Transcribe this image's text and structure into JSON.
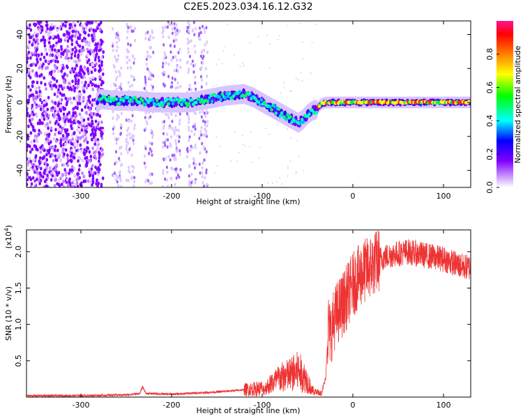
{
  "title": "C2E5.2023.034.16.12.G32",
  "colorbar": {
    "label": "Normalized spectral amplitude",
    "range": [
      0,
      1
    ],
    "ticks": [
      "0.0",
      "0.2",
      "0.4",
      "0.6",
      "0.8"
    ],
    "tick_values": [
      0,
      0.2,
      0.4,
      0.6,
      0.8
    ],
    "colormap": [
      "#ff00ff",
      "#ff0000",
      "#ff8000",
      "#ffff00",
      "#00ff00",
      "#00ffff",
      "#0000ff",
      "#8000ff",
      "#c080ff",
      "#ffffff"
    ]
  },
  "chart_data": [
    {
      "type": "heatmap",
      "name": "spectrogram",
      "xlabel": "Height of straight line (km)",
      "ylabel": "Frequency (Hz)",
      "xlim": [
        -360,
        130
      ],
      "ylim": [
        -50,
        48
      ],
      "xticks": [
        -300,
        -200,
        -100,
        0,
        100
      ],
      "xtick_labels": [
        "-300",
        "-200",
        "-100",
        "0",
        "100"
      ],
      "yticks": [
        -40,
        -20,
        0,
        20,
        40
      ],
      "ytick_labels": [
        "-40",
        "-20",
        "0",
        "20",
        "40"
      ],
      "ridge": {
        "x": [
          -280,
          -260,
          -240,
          -220,
          -200,
          -180,
          -160,
          -140,
          -120,
          -110,
          -100,
          -90,
          -80,
          -70,
          -60,
          -55,
          -50,
          -45,
          -40,
          -35,
          -30,
          -20,
          0,
          50,
          100,
          130
        ],
        "y": [
          2,
          1,
          1,
          0,
          0,
          0,
          2,
          4,
          5,
          3,
          0,
          -3,
          -6,
          -9,
          -12,
          -10,
          -7,
          -5,
          -4,
          -1,
          0,
          0,
          0,
          0,
          0,
          0
        ]
      }
    },
    {
      "type": "line",
      "name": "snr",
      "xlabel": "Height of straight line (km)",
      "ylabel": "SNR (10 * v/v)",
      "scale_label": "(x10",
      "scale_exp": "4",
      "scale_close": ")",
      "color": "#ee3333",
      "xlim": [
        -360,
        130
      ],
      "ylim": [
        0,
        2.3
      ],
      "xticks": [
        -300,
        -200,
        -100,
        0,
        100
      ],
      "xtick_labels": [
        "-300",
        "-200",
        "-100",
        "0",
        "100"
      ],
      "yticks": [
        0.5,
        1.0,
        1.5,
        2.0
      ],
      "ytick_labels": [
        "0.5",
        "1.0",
        "1.5",
        "2.0"
      ],
      "series": [
        {
          "x": [
            -360,
            -300,
            -250,
            -235,
            -232,
            -228,
            -200,
            -150,
            -120,
            -100,
            -90,
            -80,
            -70,
            -60,
            -50,
            -45,
            -40,
            -35,
            -30,
            -27,
            -25,
            -20,
            -10,
            0,
            10,
            20,
            30,
            40,
            60,
            80,
            100,
            110,
            120,
            130
          ],
          "y": [
            0.02,
            0.02,
            0.03,
            0.05,
            0.14,
            0.05,
            0.04,
            0.07,
            0.1,
            0.12,
            0.25,
            0.35,
            0.4,
            0.48,
            0.3,
            0.12,
            0.08,
            0.05,
            0.25,
            1.0,
            0.85,
            1.1,
            1.3,
            1.55,
            1.7,
            1.8,
            1.9,
            1.95,
            2.0,
            1.95,
            1.9,
            1.85,
            1.8,
            1.78
          ]
        }
      ]
    }
  ]
}
